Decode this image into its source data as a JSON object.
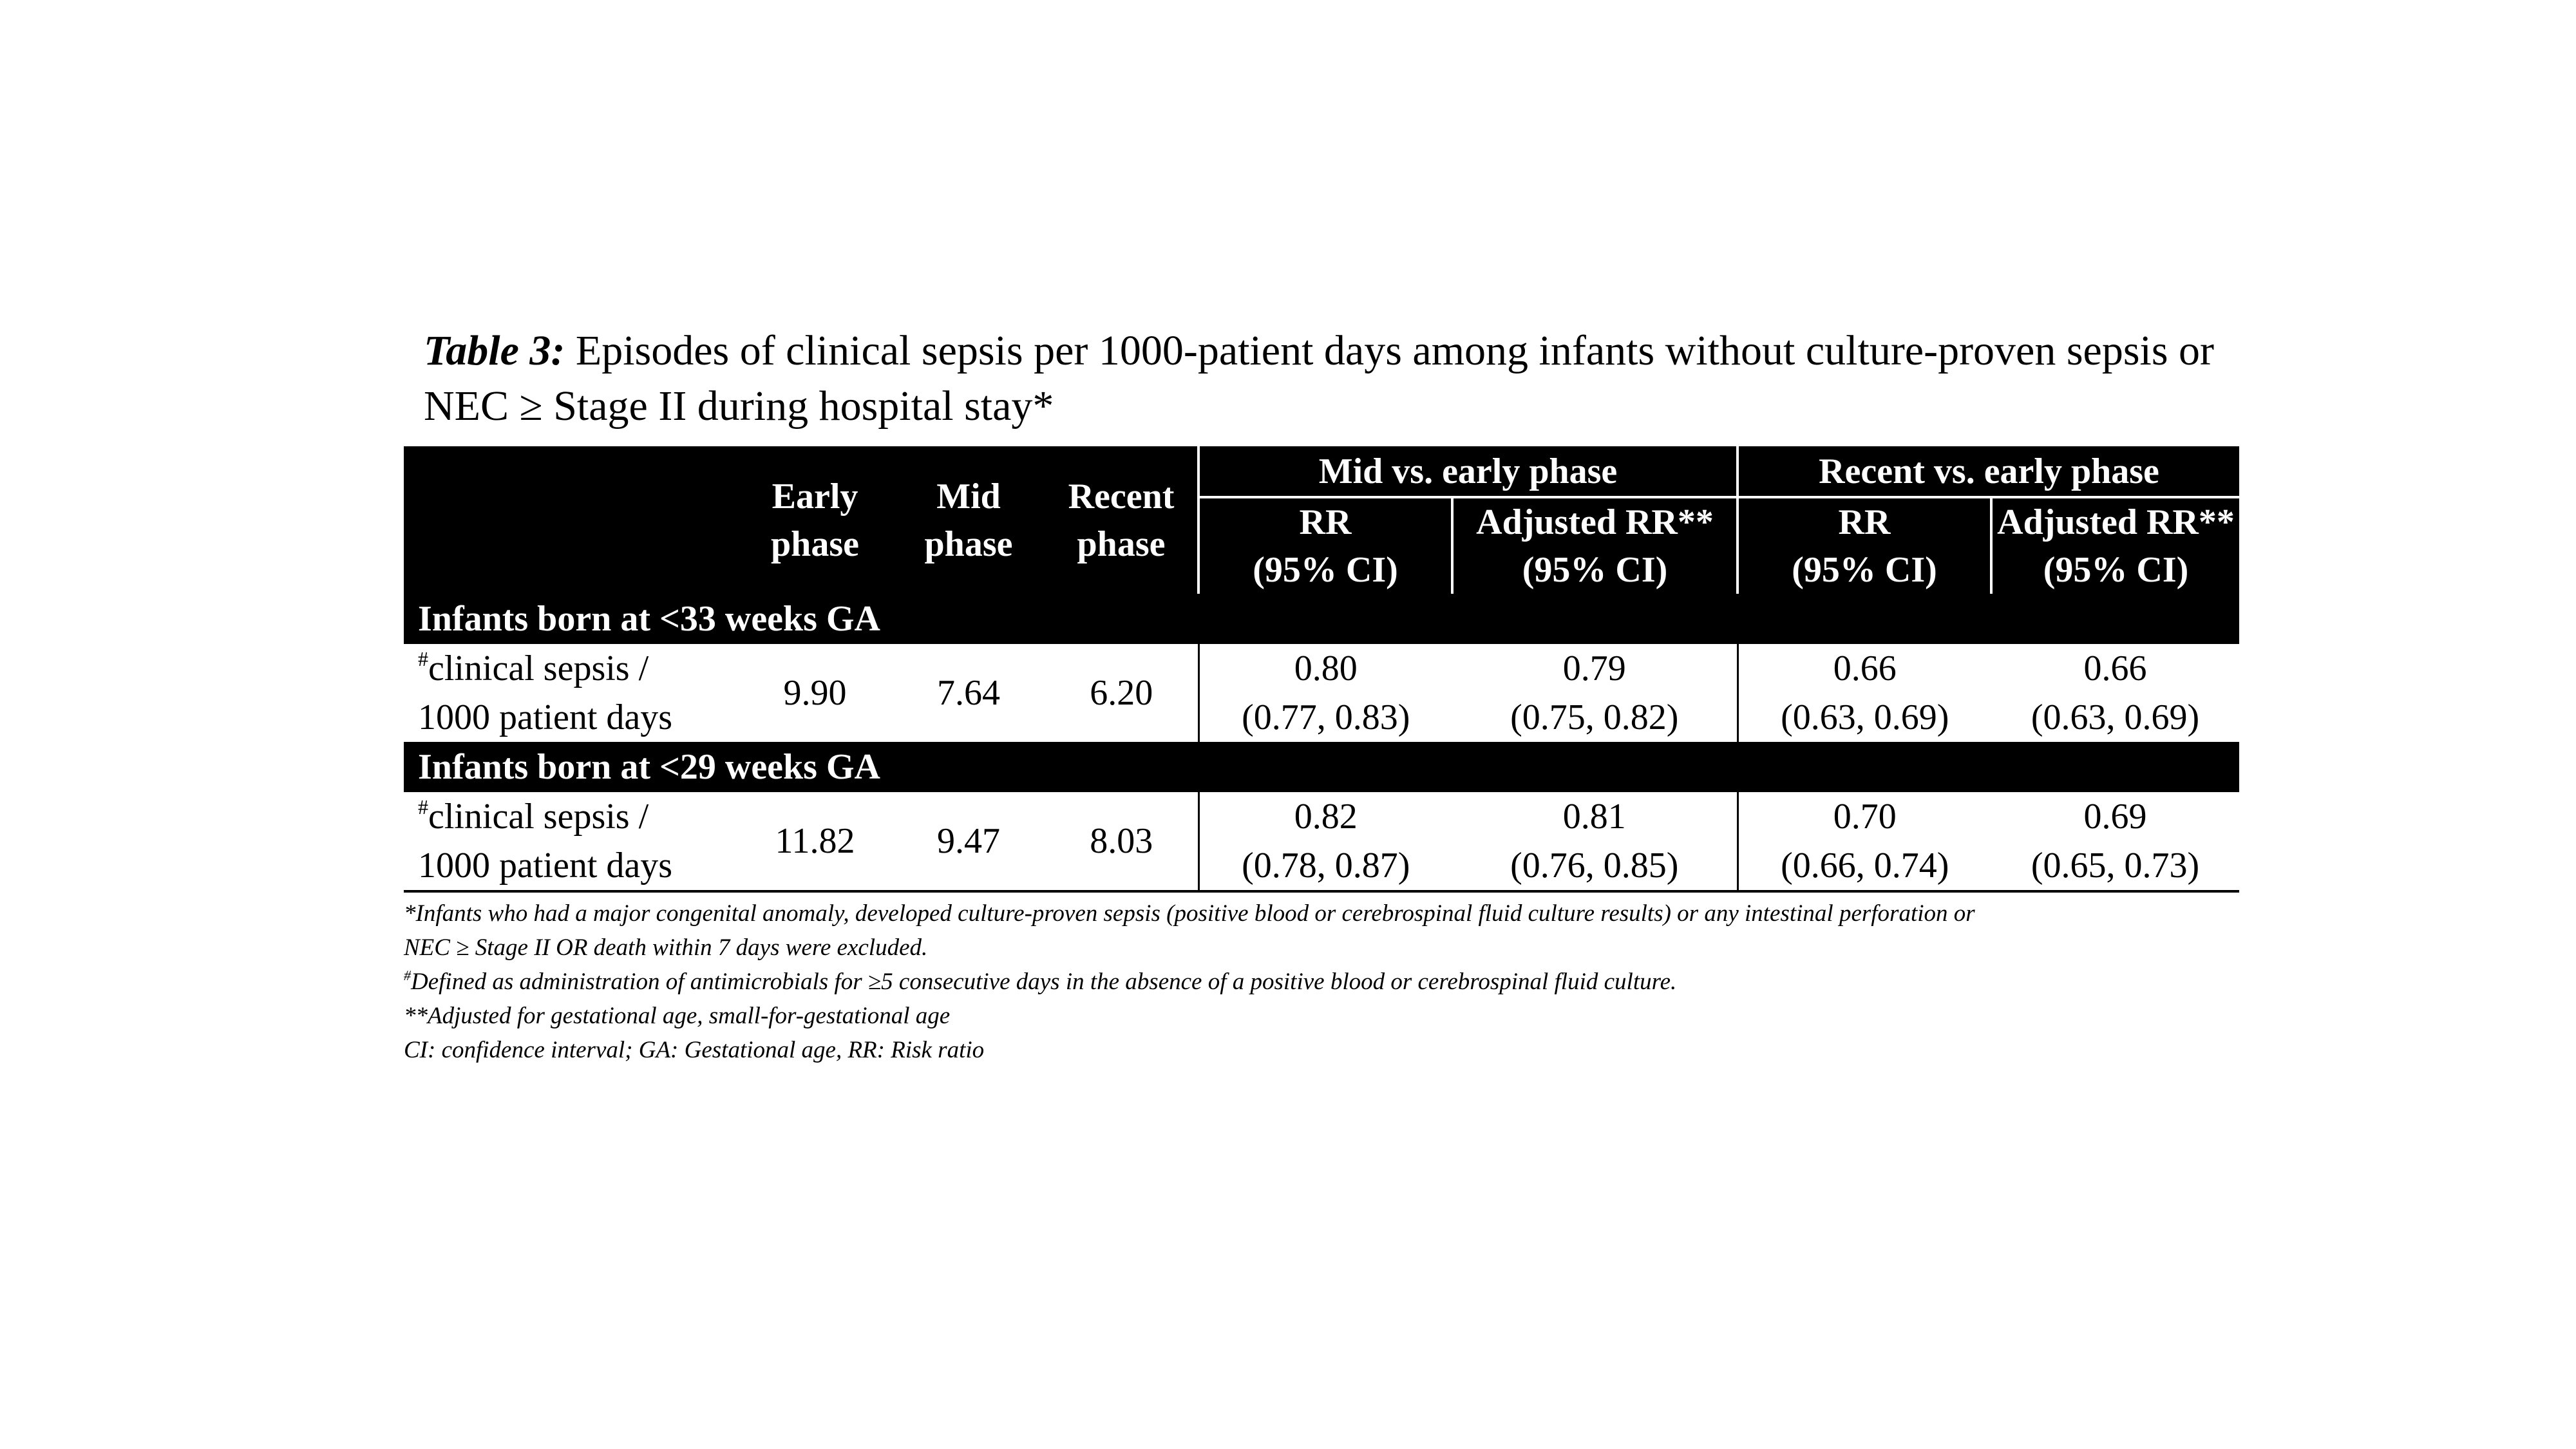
{
  "caption": {
    "label": "Table 3:",
    "text": " Episodes of clinical sepsis per 1000-patient days among infants without culture-proven sepsis or NEC ≥ Stage II during hospital stay*"
  },
  "table": {
    "header_groups": {
      "mid_vs_early": "Mid vs. early phase",
      "recent_vs_early": "Recent vs. early phase"
    },
    "header_phases": {
      "early": {
        "line1": "Early",
        "line2": "phase"
      },
      "mid": {
        "line1": "Mid",
        "line2": "phase"
      },
      "recent": {
        "line1": "Recent",
        "line2": "phase"
      }
    },
    "header_stats": {
      "rr": {
        "line1": "RR",
        "line2": "(95% CI)"
      },
      "adj_rr": {
        "line1": "Adjusted RR**",
        "line2": "(95% CI)"
      }
    },
    "sections": [
      {
        "title": "Infants born at <33 weeks GA",
        "row": {
          "label_marker": "#",
          "label_line1": "clinical sepsis /",
          "label_line2": "1000 patient days",
          "early": "9.90",
          "mid": "7.64",
          "recent": "6.20",
          "mid_rr": "0.80",
          "mid_rr_ci": "(0.77, 0.83)",
          "mid_adj_rr": "0.79",
          "mid_adj_rr_ci": "(0.75, 0.82)",
          "recent_rr": "0.66",
          "recent_rr_ci": "(0.63, 0.69)",
          "recent_adj_rr": "0.66",
          "recent_adj_rr_ci": "(0.63, 0.69)"
        }
      },
      {
        "title": "Infants born at <29 weeks GA",
        "row": {
          "label_marker": "#",
          "label_line1": "clinical sepsis /",
          "label_line2": "1000 patient days",
          "early": "11.82",
          "mid": "9.47",
          "recent": "8.03",
          "mid_rr": "0.82",
          "mid_rr_ci": "(0.78, 0.87)",
          "mid_adj_rr": "0.81",
          "mid_adj_rr_ci": "(0.76, 0.85)",
          "recent_rr": "0.70",
          "recent_rr_ci": "(0.66, 0.74)",
          "recent_adj_rr": "0.69",
          "recent_adj_rr_ci": "(0.65, 0.73)"
        }
      }
    ]
  },
  "footnotes": {
    "line1": "*Infants who had a major congenital anomaly, developed culture-proven sepsis (positive blood or cerebrospinal fluid culture results) or any intestinal perforation or",
    "line2": "NEC ≥ Stage II OR death within 7 days were excluded.",
    "line3_marker": "#",
    "line3": "Defined as administration of antimicrobials for ≥5 consecutive days in the absence of a positive blood or cerebrospinal fluid culture.",
    "line4": "**Adjusted for gestational age, small-for-gestational age",
    "line5": "CI: confidence interval; GA: Gestational age, RR: Risk ratio"
  }
}
